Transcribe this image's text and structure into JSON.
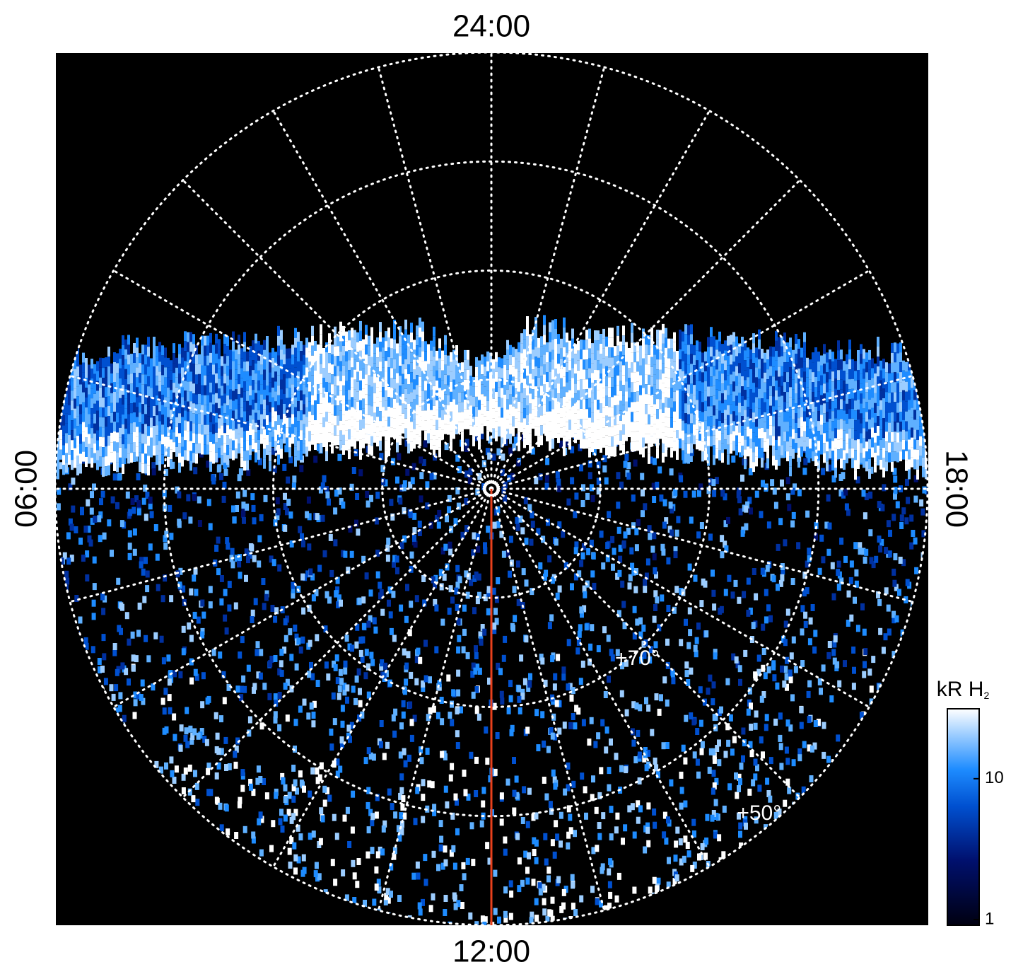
{
  "chart_data": {
    "type": "polar-image",
    "local_time_labels": {
      "top": "24:00",
      "left": "06:00",
      "right": "18:00",
      "bottom": "12:00"
    },
    "rlim": [
      90,
      50
    ],
    "rticks": [
      80,
      70,
      60,
      50
    ],
    "latitude_labels": [
      {
        "value": 70,
        "label": "+70°"
      },
      {
        "value": 50,
        "label": "+50°"
      }
    ],
    "grid": true,
    "colorbar": {
      "label": "kR H",
      "label_sub": "2",
      "scale": "log",
      "lim": [
        1,
        30
      ],
      "ticks": [
        1,
        10
      ]
    }
  }
}
